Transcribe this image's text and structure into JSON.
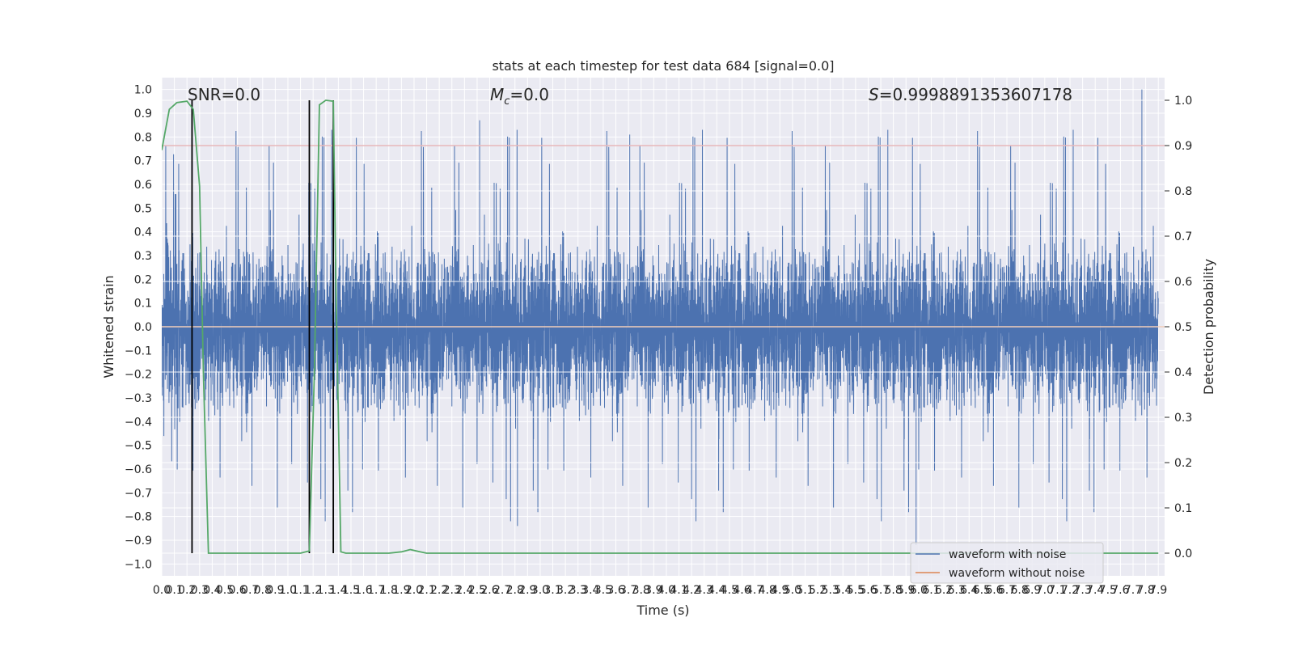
{
  "chart_data": {
    "type": "line",
    "title": "stats at each timestep for test data 684 [signal=0.0]",
    "xlabel": "Time (s)",
    "ylabel": "Whitened strain",
    "y2label": "Detection probability",
    "xlim": [
      0.0,
      7.95
    ],
    "ylim": [
      -1.05,
      1.05
    ],
    "y2lim": [
      -0.05,
      1.05
    ],
    "grid": true,
    "legend_position": "bottom-right",
    "x_ticks": [
      "0.0",
      "0.1",
      "0.2",
      "0.3",
      "0.4",
      "0.5",
      "0.6",
      "0.7",
      "0.8",
      "0.9",
      "1.0",
      "1.1",
      "1.2",
      "1.3",
      "1.4",
      "1.5",
      "1.6",
      "1.7",
      "1.8",
      "1.9",
      "2.0",
      "2.1",
      "2.2",
      "2.3",
      "2.4",
      "2.5",
      "2.6",
      "2.7",
      "2.8",
      "2.9",
      "3.0",
      "3.1",
      "3.2",
      "3.3",
      "3.4",
      "3.5",
      "3.6",
      "3.7",
      "3.8",
      "3.9",
      "4.0",
      "4.1",
      "4.2",
      "4.3",
      "4.4",
      "4.5",
      "4.6",
      "4.7",
      "4.8",
      "4.9",
      "5.0",
      "5.1",
      "5.2",
      "5.3",
      "5.4",
      "5.5",
      "5.6",
      "5.7",
      "5.8",
      "5.9",
      "6.0",
      "6.1",
      "6.2",
      "6.3",
      "6.4",
      "6.5",
      "6.6",
      "6.7",
      "6.8",
      "6.9",
      "7.0",
      "7.1",
      "7.2",
      "7.3",
      "7.4",
      "7.5",
      "7.6",
      "7.7",
      "7.8",
      "7.9"
    ],
    "y_ticks": [
      "−1.0",
      "−0.9",
      "−0.8",
      "−0.7",
      "−0.6",
      "−0.5",
      "−0.4",
      "−0.3",
      "−0.2",
      "−0.1",
      "0.0",
      "0.1",
      "0.2",
      "0.3",
      "0.4",
      "0.5",
      "0.6",
      "0.7",
      "0.8",
      "0.9",
      "1.0"
    ],
    "y2_ticks": [
      "0.0",
      "0.1",
      "0.2",
      "0.3",
      "0.4",
      "0.5",
      "0.6",
      "0.7",
      "0.8",
      "0.9",
      "1.0"
    ],
    "annotations": {
      "snr": "SNR=0.0",
      "mc_symbol": "M",
      "mc_sub": "c",
      "mc_value": "=0.0",
      "s_symbol": "S",
      "s_value": "=0.9998891353607178"
    },
    "threshold_line": {
      "y2": 0.9,
      "color": "#c44e52"
    },
    "vertical_markers_x": [
      0.24,
      1.17,
      1.36
    ],
    "noise_envelope": {
      "typical_amplitude": 0.42,
      "max_positive_peak": 1.0,
      "min_negative_peak": -0.92
    },
    "series": [
      {
        "name": "waveform with noise",
        "color": "#4c72b0",
        "axis": "left"
      },
      {
        "name": "waveform without noise",
        "color": "#dd8452",
        "axis": "left",
        "constant_value": 0.0
      },
      {
        "color": "#55a868",
        "axis": "right",
        "x": [
          0.0,
          0.06,
          0.12,
          0.2,
          0.25,
          0.3,
          0.33,
          0.37,
          0.4,
          0.6,
          0.8,
          1.0,
          1.1,
          1.17,
          1.21,
          1.25,
          1.3,
          1.36,
          1.38,
          1.42,
          1.46,
          1.6,
          1.8,
          1.9,
          1.97,
          2.05,
          2.1,
          2.2,
          3.0,
          4.0,
          5.0,
          6.0,
          7.0,
          7.9
        ],
        "values": [
          0.89,
          0.98,
          0.995,
          0.998,
          0.98,
          0.81,
          0.4,
          0.0,
          0.0,
          0.0,
          0.0,
          0.0,
          0.0,
          0.005,
          0.4,
          0.99,
          1.0,
          0.998,
          0.6,
          0.003,
          0.0,
          0.0,
          0.0,
          0.003,
          0.008,
          0.003,
          0.0,
          0.0,
          0.0,
          0.0,
          0.0,
          0.0,
          0.0,
          0.0
        ]
      }
    ]
  }
}
